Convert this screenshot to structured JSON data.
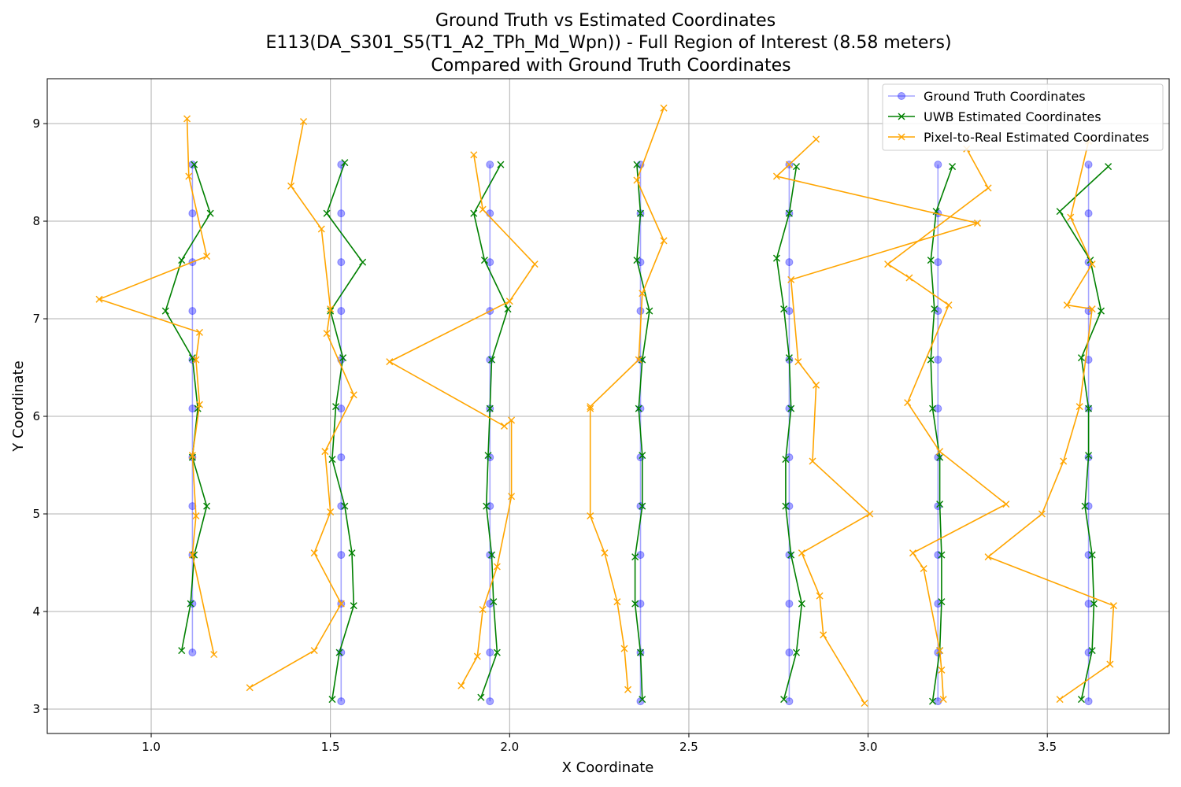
{
  "chart_data": {
    "type": "line",
    "title_lines": [
      "Ground Truth vs Estimated Coordinates",
      "E113(DA_S301_S5(T1_A2_TPh_Md_Wpn)) - Full Region of Interest (8.58 meters)",
      "Compared with Ground Truth Coordinates"
    ],
    "xlabel": "X Coordinate",
    "ylabel": "Y Coordinate",
    "xlim": [
      0.71,
      3.84
    ],
    "ylim": [
      2.75,
      9.46
    ],
    "xticks": [
      1.0,
      1.5,
      2.0,
      2.5,
      3.0,
      3.5
    ],
    "xtick_labels": [
      "1.0",
      "1.5",
      "2.0",
      "2.5",
      "3.0",
      "3.5"
    ],
    "yticks": [
      3,
      4,
      5,
      6,
      7,
      8,
      9
    ],
    "ytick_labels": [
      "3",
      "4",
      "5",
      "6",
      "7",
      "8",
      "9"
    ],
    "grid": true,
    "legend_position": "top-right",
    "colors": {
      "ground_truth": "#0000ff",
      "uwb": "#008000",
      "pixel": "#ffa500",
      "grid": "#b0b0b0"
    },
    "series": [
      {
        "key": "ground_truth",
        "name": "Ground Truth Coordinates",
        "marker": "circle",
        "color": "#0000ff",
        "opacity": 0.35,
        "paths": [
          {
            "x": [
              1.115,
              1.115,
              1.115,
              1.115,
              1.115,
              1.115,
              1.115,
              1.115,
              1.115,
              1.115,
              1.115,
              1.115
            ],
            "y": [
              8.58,
              8.08,
              7.58,
              7.08,
              6.58,
              6.08,
              5.58,
              5.08,
              4.58,
              4.08,
              3.58,
              null
            ]
          },
          {
            "x": [
              1.53,
              1.53,
              1.53,
              1.53,
              1.53,
              1.53,
              1.53,
              1.53,
              1.53,
              1.53,
              1.53,
              1.53
            ],
            "y": [
              8.58,
              8.08,
              7.58,
              7.08,
              6.58,
              6.08,
              5.58,
              5.08,
              4.58,
              4.08,
              3.58,
              3.08
            ]
          },
          {
            "x": [
              1.945,
              1.945,
              1.945,
              1.945,
              1.945,
              1.945,
              1.945,
              1.945,
              1.945,
              1.945,
              1.945,
              1.945
            ],
            "y": [
              8.58,
              8.08,
              7.58,
              7.08,
              6.58,
              6.08,
              5.58,
              5.08,
              4.58,
              4.08,
              3.58,
              3.08
            ]
          },
          {
            "x": [
              2.365,
              2.365,
              2.365,
              2.365,
              2.365,
              2.365,
              2.365,
              2.365,
              2.365,
              2.365,
              2.365,
              2.365
            ],
            "y": [
              8.58,
              8.08,
              7.58,
              7.08,
              6.58,
              6.08,
              5.58,
              5.08,
              4.58,
              4.08,
              3.58,
              3.08
            ]
          },
          {
            "x": [
              2.78,
              2.78,
              2.78,
              2.78,
              2.78,
              2.78,
              2.78,
              2.78,
              2.78,
              2.78,
              2.78,
              2.78
            ],
            "y": [
              8.58,
              8.08,
              7.58,
              7.08,
              6.58,
              6.08,
              5.58,
              5.08,
              4.58,
              4.08,
              3.58,
              3.08
            ]
          },
          {
            "x": [
              3.195,
              3.195,
              3.195,
              3.195,
              3.195,
              3.195,
              3.195,
              3.195,
              3.195,
              3.195,
              3.195,
              3.195
            ],
            "y": [
              8.58,
              8.08,
              7.58,
              7.08,
              6.58,
              6.08,
              5.58,
              5.08,
              4.58,
              4.08,
              3.58,
              3.08
            ]
          },
          {
            "x": [
              3.615,
              3.615,
              3.615,
              3.615,
              3.615,
              3.615,
              3.615,
              3.615,
              3.615,
              3.615,
              3.615,
              3.615
            ],
            "y": [
              8.58,
              8.08,
              7.58,
              7.08,
              6.58,
              6.08,
              5.58,
              5.08,
              4.58,
              4.08,
              3.58,
              3.08
            ]
          }
        ]
      },
      {
        "key": "uwb",
        "name": "UWB Estimated Coordinates",
        "marker": "x",
        "color": "#008000",
        "opacity": 1,
        "paths": [
          {
            "x": [
              1.12,
              1.165,
              1.085,
              1.04,
              1.115,
              1.13,
              1.115,
              1.155,
              1.12,
              1.11,
              1.085
            ],
            "y": [
              8.58,
              8.08,
              7.6,
              7.08,
              6.6,
              6.08,
              5.58,
              5.08,
              4.58,
              4.08,
              3.6
            ]
          },
          {
            "x": [
              1.54,
              1.49,
              1.59,
              1.5,
              1.535,
              1.515,
              1.505,
              1.54,
              1.56,
              1.565,
              1.525,
              1.505
            ],
            "y": [
              8.6,
              8.08,
              7.58,
              7.08,
              6.6,
              6.1,
              5.56,
              5.08,
              4.6,
              4.06,
              3.58,
              3.1
            ]
          },
          {
            "x": [
              1.975,
              1.9,
              1.93,
              1.995,
              1.95,
              1.945,
              1.94,
              1.935,
              1.95,
              1.955,
              1.965,
              1.92
            ],
            "y": [
              8.58,
              8.08,
              7.6,
              7.1,
              6.58,
              6.08,
              5.6,
              5.08,
              4.58,
              4.1,
              3.58,
              3.12
            ]
          },
          {
            "x": [
              2.355,
              2.365,
              2.355,
              2.39,
              2.37,
              2.36,
              2.37,
              2.37,
              2.35,
              2.35,
              2.365,
              2.37
            ],
            "y": [
              8.58,
              8.08,
              7.6,
              7.08,
              6.58,
              6.08,
              5.6,
              5.08,
              4.56,
              4.08,
              3.58,
              3.1
            ]
          },
          {
            "x": [
              2.8,
              2.78,
              2.745,
              2.765,
              2.78,
              2.785,
              2.77,
              2.77,
              2.785,
              2.815,
              2.8,
              2.765
            ],
            "y": [
              8.56,
              8.08,
              7.62,
              7.1,
              6.6,
              6.08,
              5.56,
              5.08,
              4.58,
              4.08,
              3.58,
              3.1
            ]
          },
          {
            "x": [
              3.235,
              3.19,
              3.175,
              3.185,
              3.175,
              3.18,
              3.2,
              3.2,
              3.205,
              3.205,
              3.2,
              3.18
            ],
            "y": [
              8.56,
              8.1,
              7.6,
              7.1,
              6.58,
              6.08,
              5.58,
              5.1,
              4.58,
              4.1,
              3.6,
              3.08
            ]
          },
          {
            "x": [
              3.67,
              3.535,
              3.62,
              3.65,
              3.595,
              3.615,
              3.615,
              3.605,
              3.625,
              3.63,
              3.625,
              3.595
            ],
            "y": [
              8.56,
              8.1,
              7.6,
              7.08,
              6.6,
              6.08,
              5.6,
              5.08,
              4.58,
              4.08,
              3.6,
              3.1
            ]
          }
        ]
      },
      {
        "key": "pixel",
        "name": "Pixel-to-Real Estimated Coordinates",
        "marker": "x",
        "color": "#ffa500",
        "opacity": 1,
        "paths": [
          {
            "x": [
              1.1,
              1.105,
              1.155,
              0.855,
              1.135,
              1.125,
              1.135,
              1.115,
              1.125,
              1.115,
              1.175
            ],
            "y": [
              9.05,
              8.46,
              7.64,
              7.2,
              6.86,
              6.58,
              6.12,
              5.6,
              4.98,
              4.58,
              3.56
            ]
          },
          {
            "x": [
              1.425,
              1.39,
              1.475,
              1.5,
              1.49,
              1.565,
              1.485,
              1.5,
              1.455,
              1.53,
              1.455,
              1.275
            ],
            "y": [
              9.02,
              8.36,
              7.92,
              7.1,
              6.85,
              6.22,
              5.64,
              5.02,
              4.6,
              4.08,
              3.6,
              3.22
            ]
          },
          {
            "x": [
              1.9,
              1.925,
              2.07,
              2.0,
              1.665,
              1.985,
              2.005,
              2.005,
              1.965,
              1.925,
              1.91,
              1.865
            ],
            "y": [
              8.68,
              8.12,
              7.56,
              7.18,
              6.56,
              5.9,
              5.96,
              5.18,
              4.46,
              4.02,
              3.54,
              3.24
            ]
          },
          {
            "x": [
              2.43,
              2.355,
              2.43,
              2.37,
              2.36,
              2.225,
              2.225,
              2.225,
              2.265,
              2.3,
              2.32,
              2.33
            ],
            "y": [
              9.16,
              8.42,
              7.8,
              7.26,
              6.58,
              6.1,
              6.08,
              4.98,
              4.6,
              4.1,
              3.62,
              3.2
            ]
          },
          {
            "x": [
              2.855,
              2.78,
              2.745,
              3.305,
              2.785,
              2.805,
              2.855,
              2.845,
              3.005,
              2.815,
              2.865,
              2.875,
              2.99
            ],
            "y": [
              8.84,
              8.58,
              8.46,
              7.98,
              7.4,
              6.56,
              6.32,
              5.54,
              5.0,
              4.6,
              4.16,
              3.76,
              3.06
            ]
          },
          {
            "x": [
              3.275,
              3.335,
              3.055,
              3.115,
              3.225,
              3.11,
              3.2,
              3.385,
              3.125,
              3.155,
              3.2,
              3.205,
              3.21
            ],
            "y": [
              8.74,
              8.34,
              7.56,
              7.42,
              7.14,
              6.14,
              5.64,
              5.1,
              4.6,
              4.44,
              3.6,
              3.4,
              3.1
            ]
          },
          {
            "x": [
              3.615,
              3.565,
              3.625,
              3.555,
              3.625,
              3.59,
              3.545,
              3.485,
              3.335,
              3.685,
              3.675,
              3.535
            ],
            "y": [
              8.82,
              8.04,
              7.56,
              7.14,
              7.1,
              6.1,
              5.54,
              5.0,
              4.56,
              4.06,
              3.46,
              3.1
            ]
          }
        ]
      }
    ]
  }
}
